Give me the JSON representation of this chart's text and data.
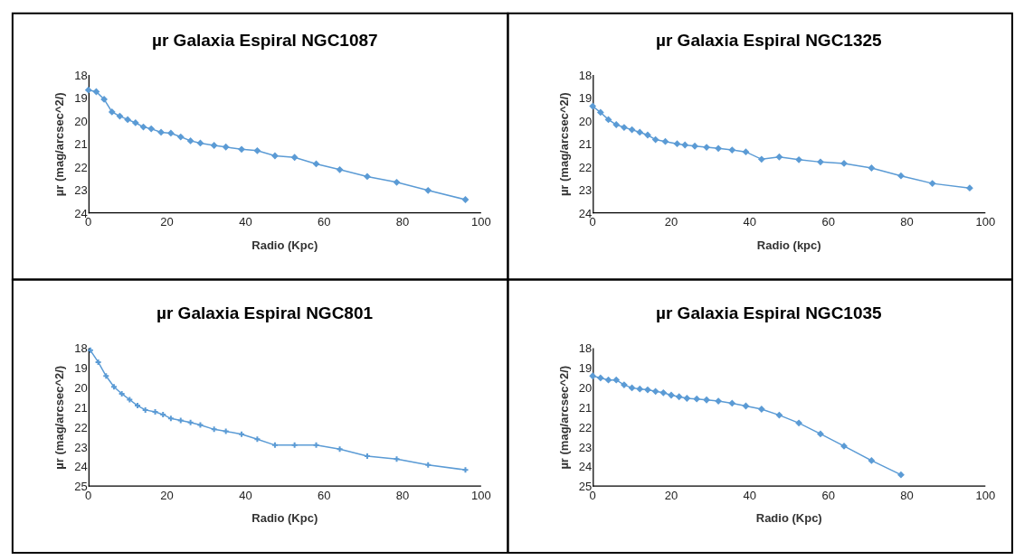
{
  "chart_data": [
    {
      "type": "line",
      "title": "µr Galaxia Espiral NGC1087",
      "xlabel": "Radio (Kpc)",
      "ylabel": "µr (mag/arcsec^2/)",
      "color": "#5b9bd5",
      "marker": "diamond",
      "xlim": [
        0,
        100
      ],
      "ylim": [
        24,
        18
      ],
      "xticks": [
        0,
        20,
        40,
        60,
        80,
        100
      ],
      "yticks": [
        18,
        19,
        20,
        21,
        22,
        23,
        24
      ],
      "x": [
        0,
        2,
        4,
        6,
        8,
        10,
        12,
        14,
        16,
        18.5,
        21,
        23.5,
        26,
        28.5,
        32,
        35,
        39,
        43,
        47.5,
        52.5,
        58,
        64,
        71,
        78.5,
        86.5,
        96
      ],
      "values": [
        18.65,
        18.72,
        19.05,
        19.6,
        19.78,
        19.93,
        20.07,
        20.25,
        20.33,
        20.48,
        20.52,
        20.68,
        20.85,
        20.95,
        21.05,
        21.12,
        21.22,
        21.28,
        21.5,
        21.57,
        21.85,
        22.1,
        22.4,
        22.65,
        23.0,
        23.4
      ]
    },
    {
      "type": "line",
      "title": "µr Galaxia Espiral NGC1325",
      "xlabel": "Radio (kpc)",
      "ylabel": "µr (mag/arcsec^2/)",
      "color": "#5b9bd5",
      "marker": "diamond",
      "xlim": [
        0,
        100
      ],
      "ylim": [
        24,
        18
      ],
      "xticks": [
        0,
        20,
        40,
        60,
        80,
        100
      ],
      "yticks": [
        18,
        19,
        20,
        21,
        22,
        23,
        24
      ],
      "x": [
        0,
        2,
        4,
        6,
        8,
        10,
        12,
        14,
        16,
        18.5,
        21.5,
        23.5,
        26,
        29,
        32,
        35.5,
        39,
        43,
        47.5,
        52.5,
        58,
        64,
        71,
        78.5,
        86.5,
        96
      ],
      "values": [
        19.35,
        19.62,
        19.93,
        20.15,
        20.27,
        20.37,
        20.48,
        20.6,
        20.8,
        20.88,
        20.98,
        21.03,
        21.08,
        21.13,
        21.18,
        21.25,
        21.33,
        21.65,
        21.55,
        21.67,
        21.77,
        21.83,
        22.03,
        22.37,
        22.7,
        22.9
      ]
    },
    {
      "type": "line",
      "title": "µr Galaxia Espiral NGC801",
      "xlabel": "Radio (Kpc)",
      "ylabel": "µr (mag/arcsec^2/)",
      "color": "#5b9bd5",
      "marker": "cross",
      "xlim": [
        0,
        100
      ],
      "ylim": [
        25,
        18
      ],
      "xticks": [
        0,
        20,
        40,
        60,
        80,
        100
      ],
      "yticks": [
        18,
        19,
        20,
        21,
        22,
        23,
        24,
        25
      ],
      "x": [
        0.5,
        2.5,
        4.5,
        6.5,
        8.5,
        10.5,
        12.5,
        14.5,
        17,
        19,
        21,
        23.5,
        26,
        28.5,
        32,
        35,
        39,
        43,
        47.5,
        52.5,
        58,
        64,
        71,
        78.5,
        86.5,
        96
      ],
      "values": [
        18.1,
        18.7,
        19.4,
        19.95,
        20.3,
        20.6,
        20.9,
        21.12,
        21.22,
        21.35,
        21.55,
        21.65,
        21.75,
        21.88,
        22.1,
        22.2,
        22.35,
        22.6,
        22.9,
        22.9,
        22.9,
        23.1,
        23.45,
        23.6,
        23.9,
        24.15
      ]
    },
    {
      "type": "line",
      "title": "µr Galaxia Espiral NGC1035",
      "xlabel": "Radio (Kpc)",
      "ylabel": "µr (mag/arcsec^2/)",
      "color": "#5b9bd5",
      "marker": "diamond",
      "xlim": [
        0,
        100
      ],
      "ylim": [
        25,
        18
      ],
      "xticks": [
        0,
        20,
        40,
        60,
        80,
        100
      ],
      "yticks": [
        18,
        19,
        20,
        21,
        22,
        23,
        24,
        25
      ],
      "x": [
        0,
        2,
        4,
        6,
        8,
        10,
        12,
        14,
        16,
        18,
        20,
        22,
        24,
        26.5,
        29,
        32,
        35.5,
        39,
        43,
        47.5,
        52.5,
        58,
        64,
        71,
        78.5
      ],
      "values": [
        19.4,
        19.5,
        19.6,
        19.6,
        19.85,
        20.0,
        20.06,
        20.1,
        20.18,
        20.25,
        20.37,
        20.45,
        20.53,
        20.56,
        20.61,
        20.67,
        20.78,
        20.92,
        21.08,
        21.38,
        21.78,
        22.33,
        22.95,
        23.68,
        24.4
      ]
    }
  ]
}
